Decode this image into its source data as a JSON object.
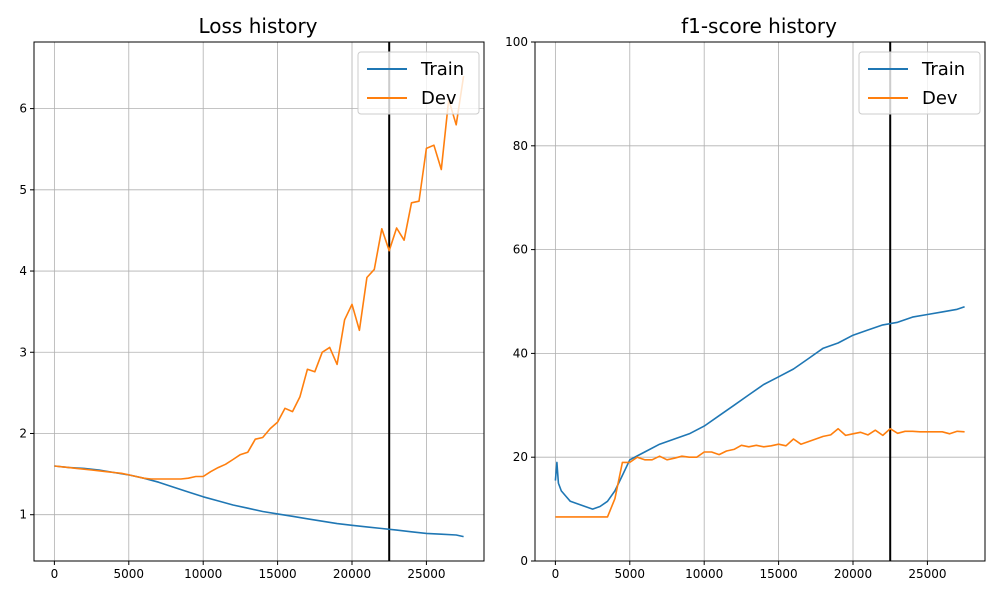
{
  "chart_data": [
    {
      "type": "line",
      "title": "Loss history",
      "xlabel": "",
      "ylabel": "",
      "xlim": [
        -1370,
        28870
      ],
      "ylim": [
        0.43,
        6.82
      ],
      "xticks": [
        0,
        5000,
        10000,
        15000,
        20000,
        25000
      ],
      "yticks": [
        1,
        2,
        3,
        4,
        5,
        6
      ],
      "grid": true,
      "legend_position": "top-right",
      "vline_x": 22500,
      "series": [
        {
          "name": "Train",
          "color": "#1f77b4",
          "x": [
            0,
            1000,
            2000,
            3000,
            4000,
            5000,
            6000,
            7000,
            8000,
            9000,
            10000,
            11000,
            12000,
            13000,
            14000,
            15000,
            16000,
            17000,
            18000,
            19000,
            20000,
            21000,
            22000,
            23000,
            24000,
            25000,
            26000,
            27000,
            27500
          ],
          "values": [
            1.6,
            1.58,
            1.57,
            1.55,
            1.52,
            1.49,
            1.45,
            1.4,
            1.34,
            1.28,
            1.22,
            1.17,
            1.12,
            1.08,
            1.04,
            1.01,
            0.98,
            0.95,
            0.92,
            0.89,
            0.87,
            0.85,
            0.83,
            0.81,
            0.79,
            0.77,
            0.76,
            0.75,
            0.73
          ]
        },
        {
          "name": "Dev",
          "color": "#ff7f0e",
          "x": [
            0,
            500,
            1000,
            1500,
            2000,
            2500,
            3000,
            3500,
            4000,
            4500,
            5000,
            5500,
            6000,
            6500,
            7000,
            7500,
            8000,
            8500,
            9000,
            9500,
            10000,
            10500,
            11000,
            11500,
            12000,
            12500,
            13000,
            13500,
            14000,
            14500,
            15000,
            15500,
            16000,
            16500,
            17000,
            17500,
            18000,
            18500,
            19000,
            19500,
            20000,
            20500,
            21000,
            21500,
            22000,
            22500,
            23000,
            23500,
            24000,
            24500,
            25000,
            25500,
            26000,
            26500,
            27000,
            27500
          ],
          "values": [
            1.6,
            1.59,
            1.58,
            1.57,
            1.56,
            1.55,
            1.54,
            1.53,
            1.52,
            1.51,
            1.49,
            1.47,
            1.45,
            1.44,
            1.44,
            1.44,
            1.44,
            1.44,
            1.45,
            1.47,
            1.47,
            1.53,
            1.58,
            1.62,
            1.68,
            1.74,
            1.77,
            1.93,
            1.95,
            2.06,
            2.14,
            2.31,
            2.27,
            2.45,
            2.79,
            2.76,
            3.0,
            3.06,
            2.85,
            3.4,
            3.59,
            3.27,
            3.92,
            4.02,
            4.52,
            4.25,
            4.53,
            4.38,
            4.84,
            4.86,
            5.51,
            5.55,
            5.25,
            6.11,
            5.8,
            6.4
          ]
        }
      ]
    },
    {
      "type": "line",
      "title": "f1-score history",
      "xlabel": "",
      "ylabel": "",
      "xlim": [
        -1370,
        28870
      ],
      "ylim": [
        0,
        100
      ],
      "xticks": [
        0,
        5000,
        10000,
        15000,
        20000,
        25000
      ],
      "yticks": [
        0,
        20,
        40,
        60,
        80,
        100
      ],
      "grid": true,
      "legend_position": "top-right",
      "vline_x": 22500,
      "series": [
        {
          "name": "Train",
          "color": "#1f77b4",
          "x": [
            0,
            100,
            200,
            400,
            700,
            1000,
            1500,
            2000,
            2500,
            3000,
            3500,
            4000,
            4500,
            5000,
            6000,
            7000,
            8000,
            9000,
            10000,
            11000,
            12000,
            13000,
            14000,
            15000,
            16000,
            17000,
            18000,
            19000,
            20000,
            21000,
            22000,
            23000,
            24000,
            25000,
            26000,
            27000,
            27500
          ],
          "values": [
            15.5,
            19.0,
            15.0,
            13.5,
            12.5,
            11.5,
            11.0,
            10.5,
            10.0,
            10.5,
            11.5,
            13.5,
            16.5,
            19.5,
            21.0,
            22.5,
            23.5,
            24.5,
            26.0,
            28.0,
            30.0,
            32.0,
            34.0,
            35.5,
            37.0,
            39.0,
            41.0,
            42.0,
            43.5,
            44.5,
            45.5,
            46.0,
            47.0,
            47.5,
            48.0,
            48.5,
            49.0
          ]
        },
        {
          "name": "Dev",
          "color": "#ff7f0e",
          "x": [
            0,
            500,
            1000,
            1500,
            2000,
            2500,
            3000,
            3500,
            4000,
            4500,
            5000,
            5500,
            6000,
            6500,
            7000,
            7500,
            8000,
            8500,
            9000,
            9500,
            10000,
            10500,
            11000,
            11500,
            12000,
            12500,
            13000,
            13500,
            14000,
            14500,
            15000,
            15500,
            16000,
            16500,
            17000,
            17500,
            18000,
            18500,
            19000,
            19500,
            20000,
            20500,
            21000,
            21500,
            22000,
            22500,
            23000,
            23500,
            24000,
            24500,
            25000,
            25500,
            26000,
            26500,
            27000,
            27500
          ],
          "values": [
            8.5,
            8.5,
            8.5,
            8.5,
            8.5,
            8.5,
            8.5,
            8.5,
            12.0,
            19.0,
            19.0,
            20.0,
            19.5,
            19.5,
            20.2,
            19.5,
            19.8,
            20.2,
            20.0,
            20.0,
            21.0,
            21.0,
            20.5,
            21.2,
            21.5,
            22.3,
            22.0,
            22.3,
            22.0,
            22.2,
            22.5,
            22.2,
            23.5,
            22.5,
            23.0,
            23.5,
            24.0,
            24.3,
            25.5,
            24.2,
            24.5,
            24.8,
            24.3,
            25.2,
            24.2,
            25.5,
            24.6,
            25.0,
            25.0,
            24.9,
            24.9,
            24.9,
            24.9,
            24.5,
            25.0,
            24.9
          ]
        }
      ]
    }
  ]
}
